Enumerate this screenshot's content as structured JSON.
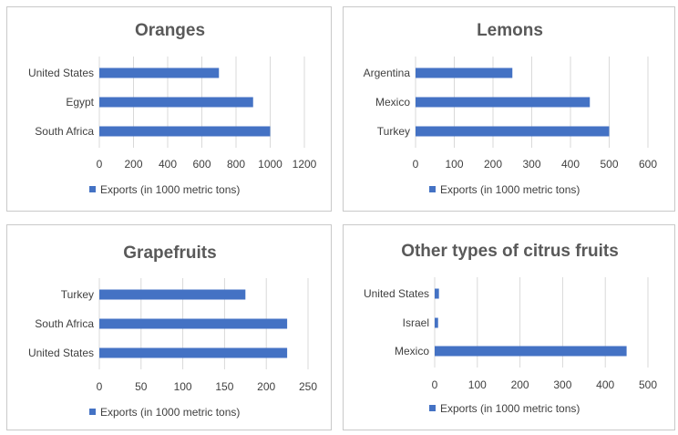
{
  "accent_color": "#4472C4",
  "gridline_color": "#d9d9d9",
  "chart_data": [
    {
      "type": "bar",
      "orientation": "horizontal",
      "title": "Oranges",
      "categories": [
        "United States",
        "Egypt",
        "South Africa"
      ],
      "series": [
        {
          "name": "Exports (in 1000 metric tons)",
          "values": [
            700,
            900,
            1000
          ]
        }
      ],
      "xlim": [
        0,
        1200
      ],
      "xticks": [
        0,
        200,
        400,
        600,
        800,
        1000,
        1200
      ],
      "grid": true,
      "legend": "bottom"
    },
    {
      "type": "bar",
      "orientation": "horizontal",
      "title": "Lemons",
      "categories": [
        "Argentina",
        "Mexico",
        "Turkey"
      ],
      "series": [
        {
          "name": "Exports (in 1000 metric tons)",
          "values": [
            250,
            450,
            500
          ]
        }
      ],
      "xlim": [
        0,
        600
      ],
      "xticks": [
        0,
        100,
        200,
        300,
        400,
        500,
        600
      ],
      "grid": true,
      "legend": "bottom"
    },
    {
      "type": "bar",
      "orientation": "horizontal",
      "title": "Grapefruits",
      "categories": [
        "Turkey",
        "South Africa",
        "United States"
      ],
      "series": [
        {
          "name": "Exports (in 1000 metric tons)",
          "values": [
            175,
            225,
            225
          ]
        }
      ],
      "xlim": [
        0,
        250
      ],
      "xticks": [
        0,
        50,
        100,
        150,
        200,
        250
      ],
      "grid": true,
      "legend": "bottom"
    },
    {
      "type": "bar",
      "orientation": "horizontal",
      "title": "Other types of citrus fruits",
      "categories": [
        "United States",
        "Israel",
        "Mexico"
      ],
      "series": [
        {
          "name": "Exports (in 1000 metric tons)",
          "values": [
            10,
            8,
            450
          ]
        }
      ],
      "xlim": [
        0,
        500
      ],
      "xticks": [
        0,
        100,
        200,
        300,
        400,
        500
      ],
      "grid": true,
      "legend": "bottom"
    }
  ]
}
